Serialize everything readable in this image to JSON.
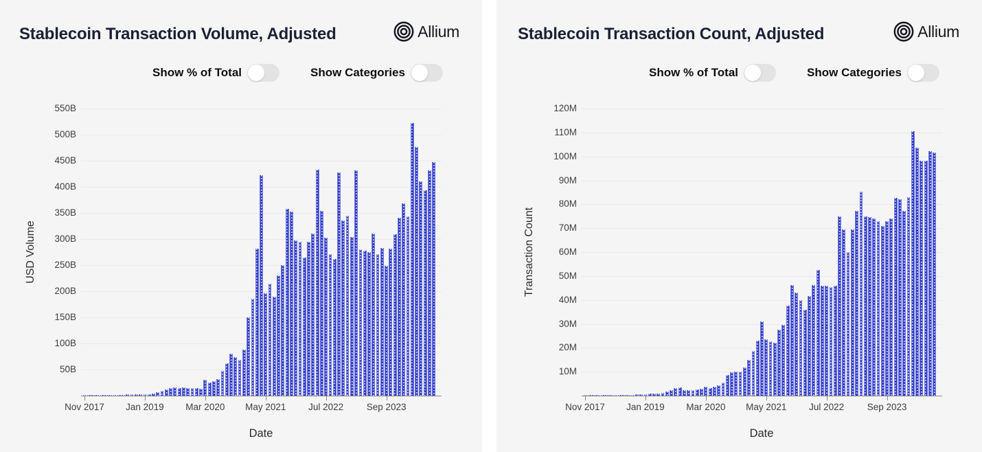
{
  "brand": {
    "name": "Allium"
  },
  "colors": {
    "bar": "#2734c6",
    "bar_dot_pattern": "#ffffff",
    "grid": "#e9e9eb",
    "axis": "#8a8a8a",
    "card_bg": "#f5f5f6",
    "title_text": "#1b2135",
    "toggle_track_off": "#e3e3e4",
    "toggle_knob": "#ffffff"
  },
  "panels": [
    {
      "title": "Stablecoin Transaction Volume, Adjusted",
      "brand_label": "Allium",
      "controls": {
        "show_pct_label": "Show % of Total",
        "show_pct_state": "off",
        "show_categories_label": "Show Categories",
        "show_categories_state": "off"
      }
    },
    {
      "title": "Stablecoin Transaction Count, Adjusted",
      "brand_label": "Allium",
      "controls": {
        "show_pct_label": "Show % of Total",
        "show_pct_state": "off",
        "show_categories_label": "Show Categories",
        "show_categories_state": "off"
      }
    }
  ],
  "chart_data": [
    {
      "type": "bar",
      "title": "Stablecoin Transaction Volume, Adjusted",
      "xlabel": "Date",
      "ylabel": "USD Volume",
      "x_is_monthly": true,
      "x_first_month": "2017-11",
      "x_last_month": "2024-08",
      "x_tick_labels": [
        "Nov 2017",
        "Jan 2019",
        "Mar 2020",
        "May 2021",
        "Jul 2022",
        "Sep 2023"
      ],
      "x_tick_indices": [
        0,
        14,
        28,
        42,
        56,
        70
      ],
      "y_tick_labels": [
        "50B",
        "100B",
        "150B",
        "200B",
        "250B",
        "300B",
        "350B",
        "400B",
        "450B",
        "500B",
        "550B"
      ],
      "y_tick_values": [
        50,
        100,
        150,
        200,
        250,
        300,
        350,
        400,
        450,
        500,
        550
      ],
      "ylim": [
        0,
        550
      ],
      "y_unit": "USD billions",
      "grid": true,
      "legend": false,
      "values": [
        0.5,
        1,
        1.5,
        1.5,
        1.5,
        1,
        1,
        1.5,
        1.5,
        1.5,
        2,
        2,
        2.5,
        2.5,
        2.5,
        3,
        4,
        6,
        9,
        12,
        14,
        16,
        15,
        16,
        15,
        14,
        14,
        13,
        30,
        25,
        28,
        32,
        47,
        62,
        80,
        74,
        69,
        88,
        150,
        186,
        282,
        422,
        196,
        214,
        190,
        230,
        250,
        358,
        353,
        297,
        295,
        265,
        295,
        310,
        433,
        354,
        302,
        271,
        262,
        427,
        336,
        345,
        304,
        432,
        280,
        277,
        275,
        310,
        271,
        283,
        249,
        281,
        309,
        341,
        368,
        343,
        522,
        476,
        410,
        394,
        432,
        448
      ]
    },
    {
      "type": "bar",
      "title": "Stablecoin Transaction Count, Adjusted",
      "xlabel": "Date",
      "ylabel": "Transaction Count",
      "x_is_monthly": true,
      "x_first_month": "2017-11",
      "x_last_month": "2024-08",
      "x_tick_labels": [
        "Nov 2017",
        "Jan 2019",
        "Mar 2020",
        "May 2021",
        "Jul 2022",
        "Sep 2023"
      ],
      "x_tick_indices": [
        0,
        14,
        28,
        42,
        56,
        70
      ],
      "y_tick_labels": [
        "10M",
        "20M",
        "30M",
        "40M",
        "50M",
        "60M",
        "70M",
        "80M",
        "90M",
        "100M",
        "110M",
        "120M"
      ],
      "y_tick_values": [
        10,
        20,
        30,
        40,
        50,
        60,
        70,
        80,
        90,
        100,
        110,
        120
      ],
      "ylim": [
        0,
        120
      ],
      "y_unit": "millions of transactions",
      "grid": true,
      "legend": false,
      "values": [
        0.05,
        0.1,
        0.1,
        0.15,
        0.15,
        0.2,
        0.2,
        0.25,
        0.25,
        0.3,
        0.35,
        0.4,
        0.5,
        0.6,
        0.7,
        0.8,
        0.9,
        1.0,
        1.2,
        1.6,
        2.2,
        3.3,
        3.5,
        2.4,
        2.2,
        2.4,
        2.6,
        2.8,
        3.6,
        3.2,
        3.8,
        4.4,
        5.5,
        8.5,
        9.8,
        10.0,
        10.0,
        11.7,
        14.9,
        18.7,
        22.9,
        30.9,
        23.6,
        22.8,
        22.2,
        27.7,
        29.6,
        37.6,
        46.1,
        43.2,
        40.0,
        36.0,
        41.5,
        46.1,
        52.6,
        46.0,
        45.8,
        45.3,
        46.0,
        74.8,
        69.5,
        59.9,
        69.5,
        77.1,
        85.3,
        74.8,
        74.7,
        74.1,
        72.9,
        71.0,
        72.9,
        74.0,
        82.6,
        82.1,
        77.3,
        83.0,
        110.6,
        103.5,
        98.2,
        98.2,
        102.1,
        101.5
      ]
    }
  ]
}
